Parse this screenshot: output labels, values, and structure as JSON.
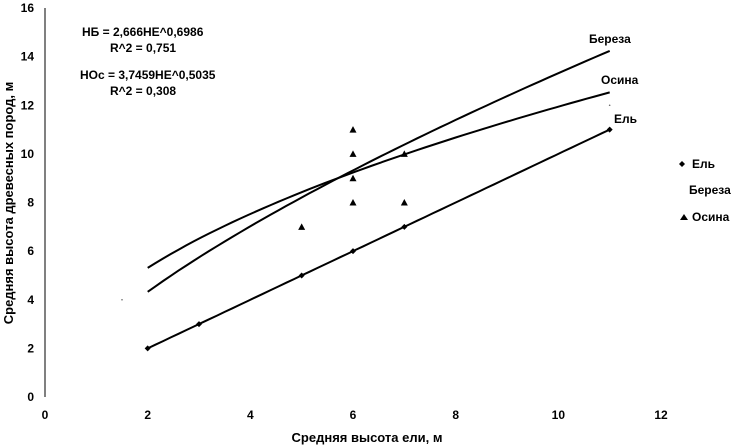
{
  "chart_data": {
    "type": "scatter",
    "xlabel": "Средняя высота ели, м",
    "ylabel": "Средняя высота древесных пород, м",
    "xlim": [
      0,
      12
    ],
    "ylim": [
      0,
      16
    ],
    "x_ticks": [
      "0",
      "2",
      "4",
      "6",
      "8",
      "10",
      "12"
    ],
    "y_ticks": [
      "0",
      "2",
      "4",
      "6",
      "8",
      "10",
      "12",
      "14",
      "16"
    ],
    "grid": false,
    "legend": "right",
    "series": [
      {
        "name": "Ель",
        "marker": "diamond",
        "points": [
          [
            2,
            2
          ],
          [
            3,
            3
          ],
          [
            5,
            5
          ],
          [
            6,
            6
          ],
          [
            7,
            7
          ],
          [
            11,
            11
          ]
        ],
        "trend": {
          "type": "linear",
          "slope": 1,
          "intercept": 0,
          "x_range": [
            2,
            11
          ],
          "label": "Ель"
        }
      },
      {
        "name": "Береза",
        "marker": "dot",
        "points": [
          [
            1.5,
            4
          ],
          [
            11,
            12
          ]
        ],
        "trend": {
          "type": "power",
          "a": 2.666,
          "b": 0.6986,
          "x_range": [
            2,
            11
          ],
          "label": "Береза"
        }
      },
      {
        "name": "Осина",
        "marker": "triangle",
        "points": [
          [
            5,
            7
          ],
          [
            6,
            8
          ],
          [
            6,
            9
          ],
          [
            6,
            10
          ],
          [
            6,
            11
          ],
          [
            7,
            8
          ],
          [
            7,
            10
          ]
        ],
        "trend": {
          "type": "power",
          "a": 3.7459,
          "b": 0.5035,
          "x_range": [
            2,
            11
          ],
          "label": "Осина"
        }
      }
    ],
    "annotations": {
      "birch_equation": "НБ = 2,666НЕ^0,6986",
      "birch_r2": "R^2 = 0,751",
      "aspen_equation": "НОс = 3,7459НЕ^0,5035",
      "aspen_r2": "R^2 = 0,308"
    }
  }
}
